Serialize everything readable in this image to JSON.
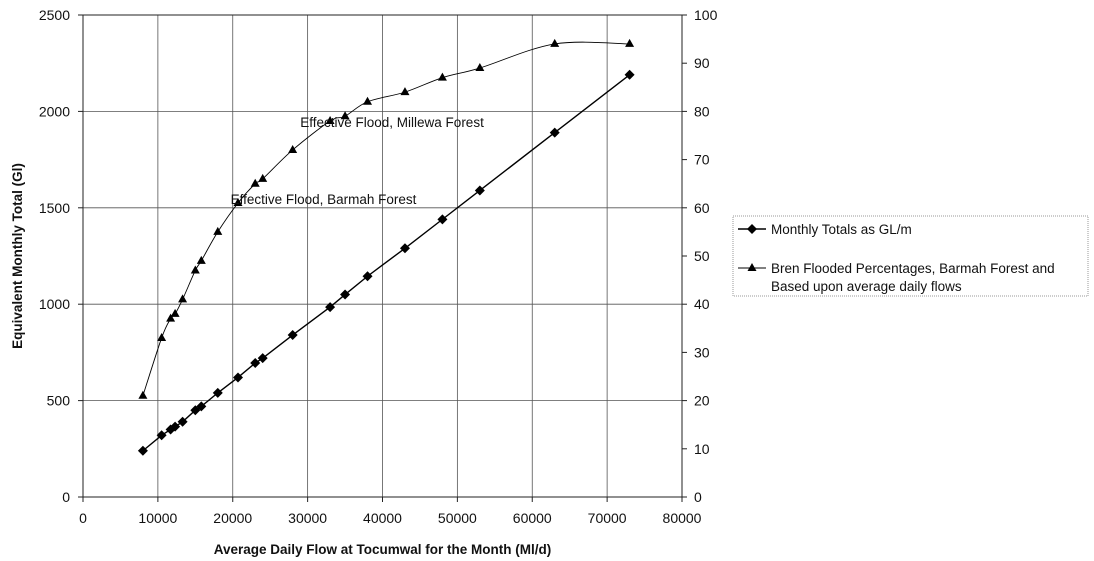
{
  "chart_data": {
    "type": "line",
    "x_axis": {
      "label": "Average Daily Flow at Tocumwal for the Month (Ml/d)",
      "range": [
        0,
        80000
      ],
      "ticks": [
        0,
        10000,
        20000,
        30000,
        40000,
        50000,
        60000,
        70000,
        80000
      ]
    },
    "y_axis_left": {
      "label": "Equivalent Monthly Total (Gl)",
      "range": [
        0,
        2500
      ],
      "ticks": [
        0,
        500,
        1000,
        1500,
        2000,
        2500
      ]
    },
    "y_axis_right": {
      "range": [
        0,
        100
      ],
      "ticks": [
        0,
        10,
        20,
        30,
        40,
        50,
        60,
        70,
        80,
        90,
        100
      ]
    },
    "grid": true,
    "legend_position": "right",
    "series": [
      {
        "name": "Monthly Totals as GL/m",
        "axis": "left",
        "marker": "diamond",
        "color": "#000000",
        "x": [
          8000,
          10500,
          11700,
          12300,
          13300,
          15000,
          15800,
          18000,
          20700,
          23000,
          24000,
          28000,
          33000,
          35000,
          38000,
          43000,
          48000,
          53000,
          63000,
          73000
        ],
        "y": [
          240,
          320,
          350,
          365,
          390,
          450,
          470,
          540,
          620,
          695,
          720,
          840,
          985,
          1050,
          1145,
          1290,
          1440,
          1590,
          1890,
          2190
        ]
      },
      {
        "name": "Bren Flooded Percentages, Barmah Forest and Based upon average daily flows",
        "axis": "right",
        "marker": "triangle",
        "color": "#000000",
        "x": [
          8000,
          10500,
          11700,
          12300,
          13300,
          15000,
          15800,
          18000,
          20700,
          23000,
          24000,
          28000,
          33000,
          35000,
          38000,
          43000,
          48000,
          53000,
          63000,
          73000
        ],
        "y": [
          21,
          33,
          37,
          38,
          41,
          47,
          49,
          55,
          61,
          65,
          66,
          72,
          78,
          79,
          82,
          84,
          87,
          89,
          94,
          94
        ]
      }
    ],
    "annotations": [
      {
        "text": "Effective Flood, Millewa Forest",
        "x": 53000,
        "y_right": 78
      },
      {
        "text": "Effective Flood, Barmah Forest",
        "x": 44000,
        "y_right": 62
      }
    ]
  }
}
